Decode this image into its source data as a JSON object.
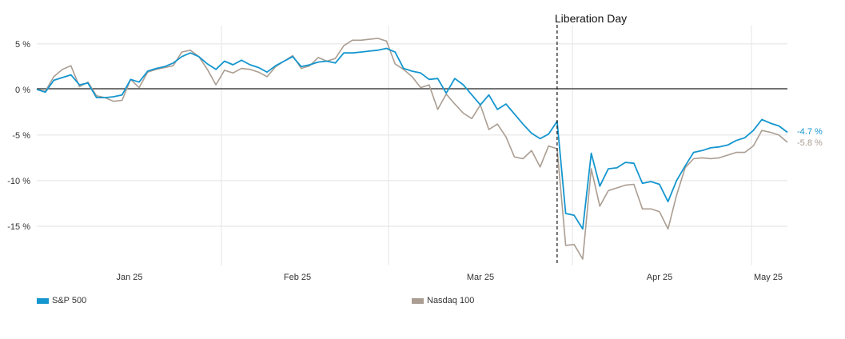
{
  "chart_data": {
    "type": "line",
    "title": "",
    "xlabel": "",
    "ylabel": "",
    "ylim": [
      -19.3,
      7
    ],
    "y_ticks": [
      5,
      0,
      -5,
      -10,
      -15
    ],
    "y_tick_labels": [
      "5 %",
      "0 %",
      "-5 %",
      "-10 %",
      "-15 %"
    ],
    "x_ticks": [
      "Jan 25",
      "Feb 25",
      "Mar 25",
      "Apr 25",
      "May 25"
    ],
    "grid": true,
    "legend_position": "bottom",
    "annotation": {
      "label": "Liberation Day",
      "x_index": 61
    },
    "series": [
      {
        "name": "S&P 500",
        "color": "#1496cf",
        "end_label": "-4.7 %",
        "values": [
          0,
          -0.3,
          1,
          1.3,
          1.6,
          0.5,
          0.7,
          -0.9,
          -0.9,
          -0.8,
          -0.6,
          1.1,
          0.8,
          2,
          2.3,
          2.5,
          2.9,
          3.6,
          4,
          3.6,
          2.8,
          2.2,
          3.1,
          2.7,
          3.2,
          2.7,
          2.4,
          1.9,
          2.6,
          3.1,
          3.6,
          2.5,
          2.7,
          3,
          3.1,
          2.9,
          4,
          4,
          4.1,
          4.2,
          4.3,
          4.5,
          4.1,
          2.3,
          2,
          1.8,
          1.1,
          1.2,
          -0.4,
          1.2,
          0.5,
          -0.6,
          -1.7,
          -0.6,
          -2.2,
          -1.6,
          -2.7,
          -3.8,
          -4.8,
          -5.4,
          -4.9,
          -3.5,
          -13.6,
          -13.8,
          -15.3,
          -7,
          -10.6,
          -8.7,
          -8.6,
          -8,
          -8.1,
          -10.3,
          -10.1,
          -10.4,
          -12.3,
          -10,
          -8.4,
          -6.9,
          -6.7,
          -6.4,
          -6.3,
          -6.1,
          -5.6,
          -5.3,
          -4.5,
          -3.3,
          -3.7,
          -4,
          -4.7
        ]
      },
      {
        "name": "Nasdaq 100",
        "color": "#aa9d92",
        "end_label": "-5.8 %",
        "values": [
          0,
          -0.2,
          1.4,
          2.2,
          2.6,
          0.3,
          0.8,
          -0.7,
          -0.9,
          -1.3,
          -1.2,
          1.1,
          0.2,
          1.9,
          2.2,
          2.4,
          2.6,
          4.1,
          4.3,
          3.6,
          2.2,
          0.5,
          2.1,
          1.8,
          2.3,
          2.2,
          1.9,
          1.4,
          2.5,
          3.1,
          3.7,
          2.3,
          2.6,
          3.5,
          3.1,
          3.4,
          4.8,
          5.4,
          5.4,
          5.5,
          5.6,
          5.3,
          2.8,
          2.2,
          1.4,
          0.2,
          0.5,
          -2.2,
          -0.5,
          -1.6,
          -2.6,
          -3.2,
          -1.7,
          -4.4,
          -3.8,
          -5.2,
          -7.4,
          -7.6,
          -6.7,
          -8.5,
          -6.2,
          -6.5,
          -17.1,
          -17,
          -18.6,
          -8.7,
          -12.8,
          -11.1,
          -10.8,
          -10.5,
          -10.4,
          -13.1,
          -13.1,
          -13.4,
          -15.3,
          -11.6,
          -8.6,
          -7.6,
          -7.5,
          -7.6,
          -7.5,
          -7.2,
          -6.9,
          -6.9,
          -6.2,
          -4.5,
          -4.7,
          -5,
          -5.8
        ]
      }
    ]
  }
}
